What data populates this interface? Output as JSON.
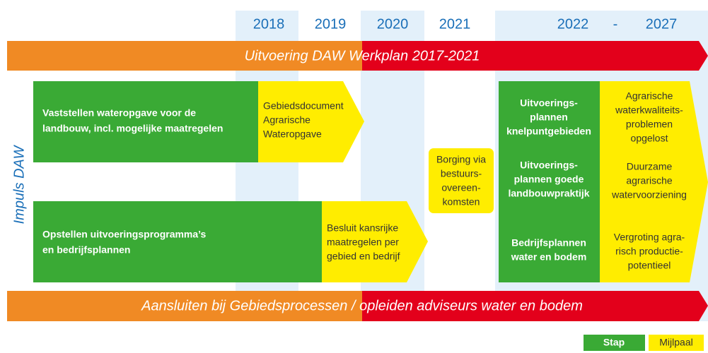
{
  "years": [
    "2018",
    "2019",
    "2020",
    "2021",
    "2022",
    "-",
    "2027"
  ],
  "banners": {
    "top": "Uitvoering DAW Werkplan 2017-2021",
    "bottom": "Aansluiten bij Gebiedsprocessen / opleiden adviseurs water en bodem"
  },
  "side_label": "Impuls DAW",
  "steps": [
    [
      "Vaststellen wateropgave voor de",
      "landbouw, incl. mogelijke maatregelen"
    ],
    [
      "Opstellen uitvoeringsprogramma’s",
      "en bedrijfsplannen"
    ]
  ],
  "milestones": [
    [
      "Gebiedsdocument",
      "Agrarische",
      "Wateropgave"
    ],
    [
      "Besluit kansrijke",
      "maatregelen per",
      "gebied en bedrijf"
    ],
    [
      "Borging via",
      "bestuurs-",
      "overeen-",
      "komsten"
    ]
  ],
  "right_steps": [
    [
      "Uitvoerings-",
      "plannen",
      "knelpuntgebieden"
    ],
    [
      "Uitvoerings-",
      "plannen goede",
      "landbouwpraktijk"
    ],
    [
      "Bedrijfsplannen",
      "water en bodem"
    ]
  ],
  "right_milestones": [
    [
      "Agrarische",
      "waterkwaliteits-",
      "problemen",
      "opgelost"
    ],
    [
      "Duurzame",
      "agrarische",
      "watervoorziening"
    ],
    [
      "Vergroting agra-",
      "risch productie-",
      "potentieel"
    ]
  ],
  "legend": [
    "Stap",
    "Mijlpaal"
  ]
}
